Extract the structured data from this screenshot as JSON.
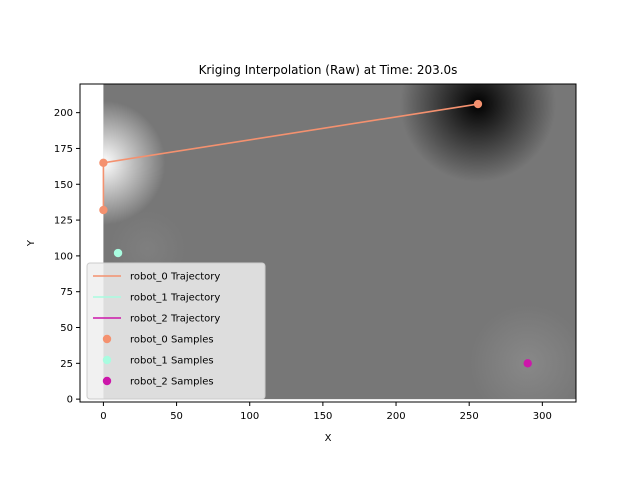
{
  "chart_data": {
    "type": "scatter",
    "title": "Kriging Interpolation (Raw) at Time: 203.0s",
    "xlabel": "X",
    "ylabel": "Y",
    "xlim": [
      -16,
      323
    ],
    "ylim": [
      -2,
      220
    ],
    "xticks": [
      "0",
      "50",
      "100",
      "150",
      "200",
      "250",
      "300"
    ],
    "yticks": [
      "0",
      "25",
      "50",
      "75",
      "100",
      "125",
      "150",
      "175",
      "200"
    ],
    "xtick_values": [
      0,
      50,
      100,
      150,
      200,
      250,
      300
    ],
    "ytick_values": [
      0,
      25,
      50,
      75,
      100,
      125,
      150,
      175,
      200
    ],
    "background_field": {
      "colormap": "gray",
      "x_range": [
        0,
        323
      ],
      "y_range": [
        0,
        220
      ],
      "baseline_color": "#777777",
      "blobs": [
        {
          "x": 0,
          "y": 165,
          "tone": "light",
          "color": "#ffffff"
        },
        {
          "x": 256,
          "y": 206,
          "tone": "dark",
          "color": "#000000"
        },
        {
          "x": 290,
          "y": 25,
          "tone": "light",
          "color": "#888888"
        },
        {
          "x": 30,
          "y": 105,
          "tone": "light",
          "color": "#7f7f7f"
        }
      ]
    },
    "series": [
      {
        "name": "robot_0 Trajectory",
        "kind": "line",
        "color": "#f4916f",
        "points": [
          [
            0,
            132
          ],
          [
            0,
            165
          ],
          [
            256,
            206
          ]
        ]
      },
      {
        "name": "robot_1 Trajectory",
        "kind": "line",
        "color": "#a9fce0",
        "points": [
          [
            10,
            102
          ]
        ]
      },
      {
        "name": "robot_2 Trajectory",
        "kind": "line",
        "color": "#cc17aa",
        "points": [
          [
            290,
            25
          ]
        ]
      },
      {
        "name": "robot_0 Samples",
        "kind": "scatter",
        "color": "#f4916f",
        "points": [
          [
            0,
            132
          ],
          [
            0,
            165
          ],
          [
            256,
            206
          ]
        ]
      },
      {
        "name": "robot_1 Samples",
        "kind": "scatter",
        "color": "#a9fce0",
        "points": [
          [
            10,
            102
          ]
        ]
      },
      {
        "name": "robot_2 Samples",
        "kind": "scatter",
        "color": "#cc17aa",
        "points": [
          [
            290,
            25
          ]
        ]
      }
    ],
    "legend": {
      "placement": "lower-left",
      "entries": [
        {
          "label": "robot_0 Trajectory",
          "kind": "line",
          "color": "#f4916f"
        },
        {
          "label": "robot_1 Trajectory",
          "kind": "line",
          "color": "#a9fce0"
        },
        {
          "label": "robot_2 Trajectory",
          "kind": "line",
          "color": "#cc17aa"
        },
        {
          "label": "robot_0 Samples",
          "kind": "marker",
          "color": "#f4916f"
        },
        {
          "label": "robot_1 Samples",
          "kind": "marker",
          "color": "#a9fce0"
        },
        {
          "label": "robot_2 Samples",
          "kind": "marker",
          "color": "#cc17aa"
        }
      ]
    },
    "grid": false
  }
}
